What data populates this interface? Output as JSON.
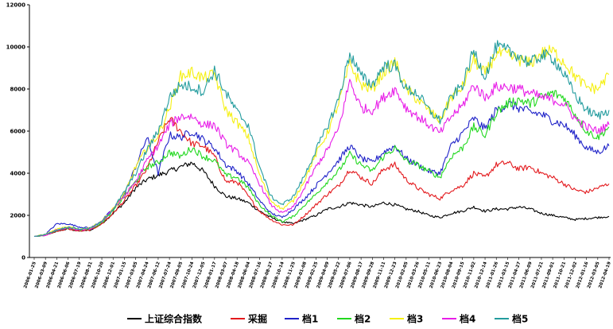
{
  "chart_data": {
    "type": "line",
    "title": "",
    "xlabel": "",
    "ylabel": "",
    "ylim": [
      0,
      12000
    ],
    "yticks": [
      "0",
      "2000",
      "4000",
      "6000",
      "8000",
      "10000",
      "12000"
    ],
    "grid": false,
    "legend_position": "bottom",
    "x_dates": [
      "2006-01-25",
      "2006-03-09",
      "2006-04-21",
      "2006-06-06",
      "2006-07-19",
      "2006-08-31",
      "2006-10-20",
      "2006-12-01",
      "2007-01-15",
      "2007-03-05",
      "2007-04-24",
      "2007-06-12",
      "2007-07-24",
      "2007-09-05",
      "2007-10-24",
      "2007-12-05",
      "2008-01-17",
      "2008-03-07",
      "2008-04-18",
      "2008-06-04",
      "2008-07-16",
      "2008-08-27",
      "2008-10-14",
      "2008-11-25",
      "2009-01-08",
      "2009-02-25",
      "2009-04-09",
      "2009-05-22",
      "2009-07-06",
      "2009-08-17",
      "2009-09-28",
      "2009-11-11",
      "2009-12-23",
      "2010-02-05",
      "2010-03-26",
      "2010-05-11",
      "2010-06-23",
      "2010-08-04",
      "2010-09-15",
      "2010-11-02",
      "2010-12-14",
      "2011-01-26",
      "2011-03-15",
      "2011-04-27",
      "2011-06-09",
      "2011-07-21",
      "2011-09-01",
      "2011-10-21",
      "2011-12-02",
      "2012-01-16",
      "2012-03-05",
      "2012-04-19"
    ],
    "series": [
      {
        "name": "上证综合指数",
        "color": "#000000",
        "values": [
          1000,
          1050,
          1250,
          1350,
          1250,
          1300,
          1600,
          2100,
          2600,
          3300,
          3700,
          3900,
          4100,
          4300,
          4500,
          4100,
          3400,
          2900,
          2800,
          2600,
          2200,
          1900,
          1700,
          1600,
          1800,
          2000,
          2300,
          2400,
          2600,
          2500,
          2400,
          2600,
          2500,
          2300,
          2200,
          2000,
          1900,
          2100,
          2200,
          2400,
          2200,
          2300,
          2300,
          2400,
          2300,
          2100,
          2000,
          1900,
          1800,
          1850,
          1900,
          1950
        ]
      },
      {
        "name": "采掘",
        "color": "#e3191d",
        "values": [
          1000,
          1050,
          1250,
          1350,
          1250,
          1300,
          1600,
          2100,
          2700,
          3400,
          4200,
          5500,
          6600,
          6000,
          5400,
          5300,
          4800,
          3600,
          3600,
          2900,
          2200,
          1800,
          1550,
          1550,
          2000,
          2500,
          3000,
          3400,
          4200,
          3800,
          3500,
          4200,
          4400,
          3700,
          3300,
          3000,
          2800,
          3200,
          3400,
          4000,
          3800,
          4400,
          4500,
          4200,
          4300,
          4000,
          3800,
          3500,
          3200,
          3100,
          3300,
          3500
        ]
      },
      {
        "name": "档1",
        "color": "#1f22c8",
        "values": [
          1000,
          1100,
          1600,
          1600,
          1450,
          1400,
          1750,
          2300,
          3000,
          4300,
          5700,
          4000,
          5800,
          5700,
          6000,
          5600,
          5200,
          4400,
          4100,
          3500,
          2700,
          2100,
          1900,
          2300,
          2800,
          3400,
          4000,
          4600,
          5300,
          4700,
          4500,
          5000,
          5300,
          4700,
          4400,
          4100,
          4000,
          5300,
          5900,
          6600,
          6100,
          7000,
          7300,
          7100,
          6900,
          6800,
          6500,
          6300,
          5800,
          5200,
          5000,
          5300
        ]
      },
      {
        "name": "档2",
        "color": "#21d81e",
        "values": [
          1000,
          1050,
          1300,
          1400,
          1300,
          1350,
          1650,
          2200,
          2900,
          3600,
          4300,
          4500,
          5000,
          4800,
          5200,
          4800,
          4600,
          3900,
          3800,
          3300,
          2500,
          2000,
          1700,
          1950,
          2500,
          3000,
          3600,
          4100,
          4900,
          4400,
          4100,
          4800,
          5200,
          4600,
          4400,
          4100,
          3800,
          4800,
          5200,
          6200,
          5800,
          6900,
          7300,
          7500,
          7300,
          7600,
          7800,
          7600,
          6800,
          6000,
          5700,
          6200
        ]
      },
      {
        "name": "档3",
        "color": "#f5f013",
        "values": [
          1000,
          1100,
          1350,
          1450,
          1350,
          1400,
          1750,
          2300,
          3000,
          4300,
          5200,
          5800,
          7100,
          8600,
          8800,
          8500,
          8700,
          7000,
          6400,
          5700,
          3900,
          2700,
          2300,
          2700,
          3700,
          4900,
          5900,
          7300,
          9200,
          8200,
          8000,
          8800,
          9300,
          8000,
          7500,
          7000,
          6500,
          7600,
          8100,
          9400,
          8700,
          9700,
          9600,
          9400,
          9200,
          9700,
          9800,
          9300,
          8600,
          8100,
          8000,
          8700
        ]
      },
      {
        "name": "档4",
        "color": "#e81ee8",
        "values": [
          1000,
          1050,
          1300,
          1400,
          1300,
          1350,
          1700,
          2300,
          2900,
          3600,
          4600,
          5300,
          6300,
          6700,
          6700,
          6300,
          6300,
          5400,
          5000,
          4500,
          3500,
          2500,
          2100,
          2400,
          3300,
          4300,
          5100,
          6100,
          8400,
          7100,
          7000,
          7600,
          8000,
          7100,
          6700,
          6300,
          5900,
          6700,
          7200,
          8200,
          7600,
          8100,
          8100,
          8000,
          7800,
          7600,
          7500,
          7300,
          6600,
          6200,
          6000,
          6300
        ]
      },
      {
        "name": "档5",
        "color": "#239c9e",
        "values": [
          1000,
          1100,
          1300,
          1450,
          1350,
          1400,
          1700,
          2300,
          3100,
          4000,
          5100,
          6000,
          7600,
          8200,
          8100,
          7900,
          8900,
          7800,
          6900,
          6300,
          4300,
          2900,
          2500,
          2900,
          3900,
          5100,
          6200,
          7500,
          9700,
          8600,
          8200,
          9100,
          9100,
          8000,
          7800,
          7000,
          6500,
          7600,
          8200,
          9800,
          8600,
          10000,
          9800,
          9600,
          9200,
          9600,
          9500,
          8700,
          7700,
          7000,
          6700,
          7000
        ]
      }
    ]
  }
}
